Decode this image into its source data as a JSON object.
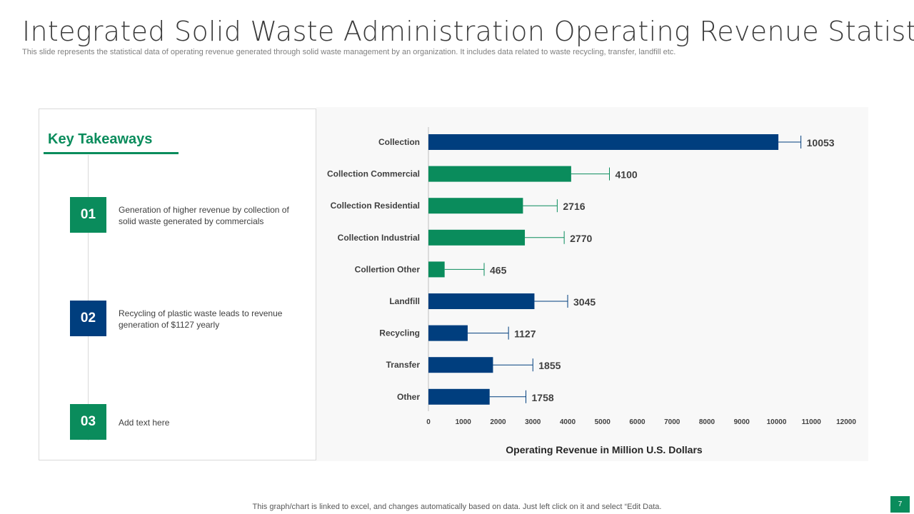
{
  "header": {
    "title": "Integrated Solid Waste Administration Operating Revenue Statistics",
    "subtitle": "This slide represents the statistical data of operating revenue generated through solid waste management by an organization. It includes data related to waste recycling, transfer, landfill etc."
  },
  "takeaways": {
    "title": "Key Takeaways",
    "items": [
      {
        "num": "01",
        "text": "Generation of higher revenue  by collection of solid waste generated  by commercials",
        "color": "#0a8c5c"
      },
      {
        "num": "02",
        "text": "Recycling of plastic waste leads to revenue generation  of $1127 yearly",
        "color": "#003e7e"
      },
      {
        "num": "03",
        "text": "Add text here",
        "color": "#0a8c5c"
      }
    ]
  },
  "colors": {
    "blue": "#003e7e",
    "green": "#0a8c5c"
  },
  "chart_data": {
    "type": "bar",
    "orientation": "horizontal",
    "title": "",
    "xlabel": "Operating Revenue in Million U.S. Dollars",
    "ylabel": "",
    "xlim": [
      0,
      12000
    ],
    "xticks": [
      0,
      1000,
      2000,
      3000,
      4000,
      5000,
      6000,
      7000,
      8000,
      9000,
      10000,
      11000,
      12000
    ],
    "categories": [
      "Collection",
      "Collection Commercial",
      "Collection Residential",
      "Collection Industrial",
      "Collertion Other",
      "Landfill",
      "Recycling",
      "Transfer",
      "Other"
    ],
    "values": [
      10053,
      4100,
      2716,
      2770,
      465,
      3045,
      1127,
      1855,
      1758
    ],
    "bar_colors": [
      "#003e7e",
      "#0a8c5c",
      "#0a8c5c",
      "#0a8c5c",
      "#0a8c5c",
      "#003e7e",
      "#003e7e",
      "#003e7e",
      "#003e7e"
    ],
    "error_bar_ends": [
      10700,
      5200,
      3700,
      3900,
      1600,
      4000,
      2300,
      3000,
      2800
    ],
    "grid": false,
    "legend": "none"
  },
  "footer": {
    "note": "This graph/chart is linked to excel, and changes automatically based on data. Just left click on it and select “Edit Data.",
    "page": "7"
  }
}
